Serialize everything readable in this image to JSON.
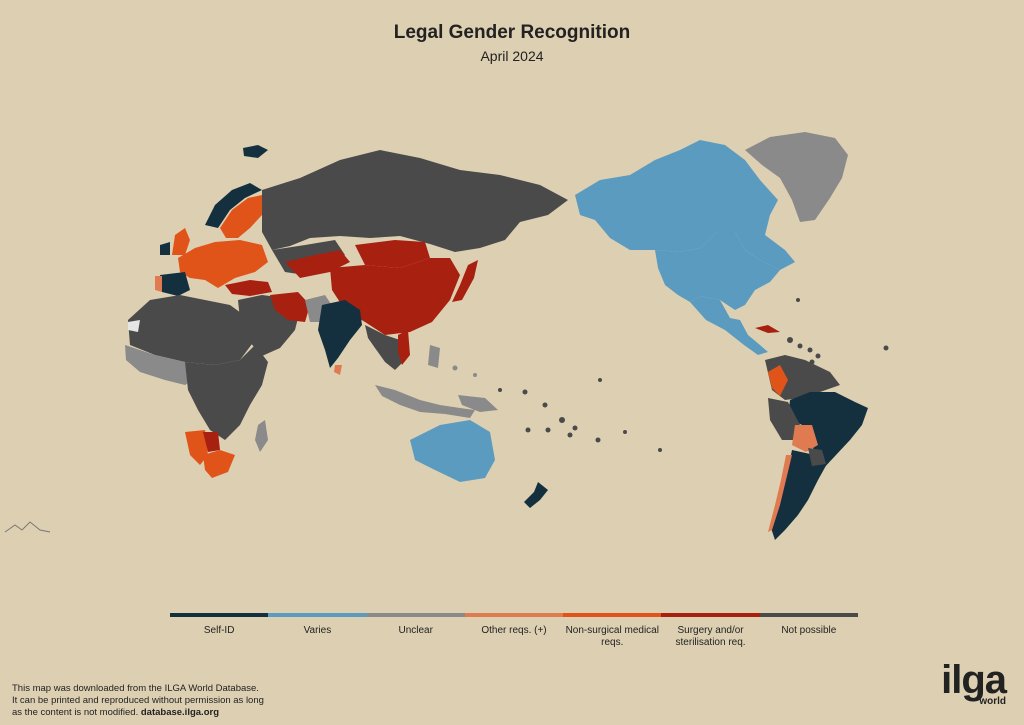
{
  "title": "Legal Gender Recognition",
  "subtitle": "April 2024",
  "colors": {
    "background": "#ddd0b2",
    "self_id": "#14303f",
    "varies": "#5b9bc0",
    "unclear": "#8a8a8a",
    "other_reqs": "#e07a50",
    "non_surgical": "#e0541a",
    "surgery": "#a82010",
    "not_possible": "#4a4a4a"
  },
  "legend": [
    {
      "label": "Self-ID",
      "color": "#14303f"
    },
    {
      "label": "Varies",
      "color": "#5b9bc0"
    },
    {
      "label": "Unclear",
      "color": "#8a8a8a"
    },
    {
      "label": "Other reqs. (+)",
      "color": "#e07a50"
    },
    {
      "label": "Non-surgical medical reqs.",
      "color": "#e0541a"
    },
    {
      "label": "Surgery and/or sterilisation req.",
      "color": "#a82010"
    },
    {
      "label": "Not possible",
      "color": "#4a4a4a"
    }
  ],
  "footer": {
    "line1": "This map was downloaded from the ILGA World Database.",
    "line2": "It can be printed and reproduced without permission as long",
    "line3": "as the content is not modified.",
    "link": "database.ilga.org"
  },
  "logo": {
    "main": "ilga",
    "sub": "world"
  }
}
